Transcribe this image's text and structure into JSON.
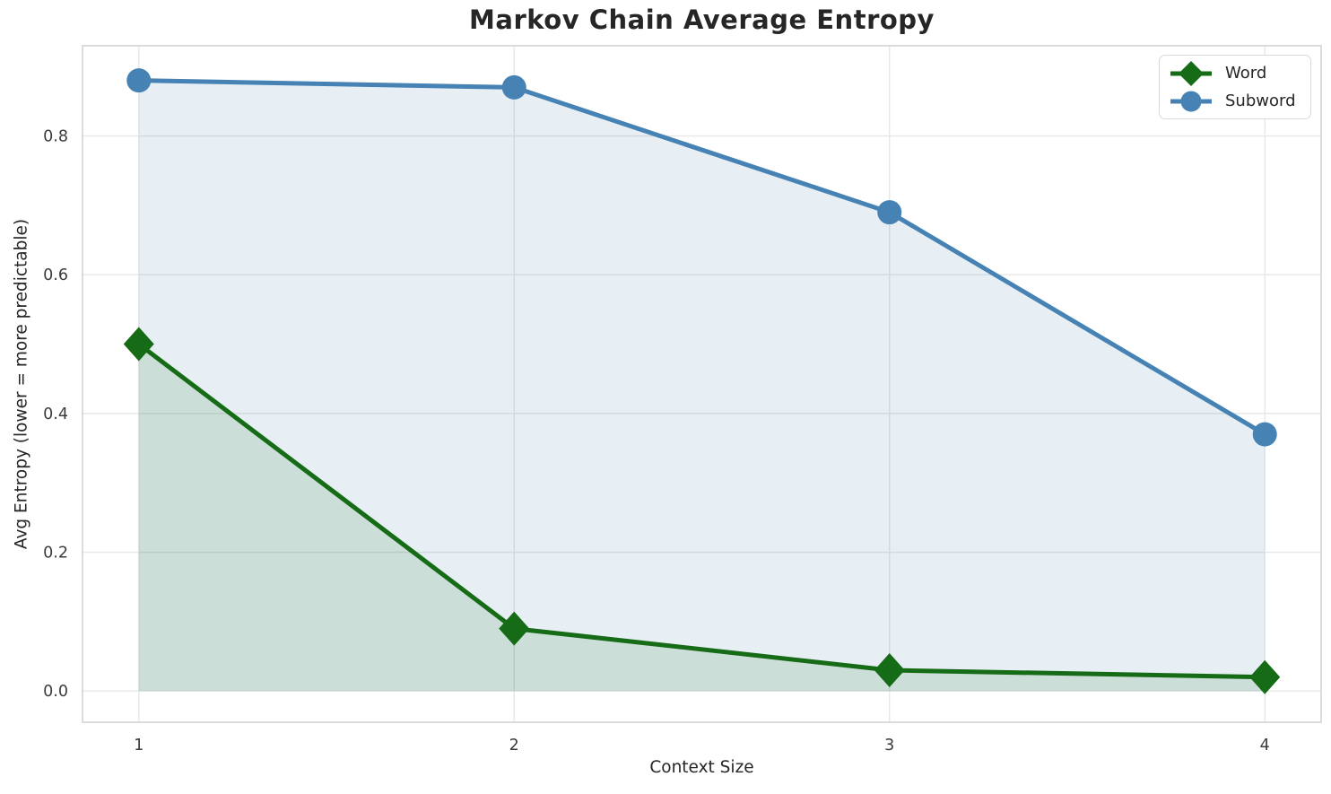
{
  "chart_data": {
    "type": "line",
    "title": "Markov Chain Average Entropy",
    "xlabel": "Context Size",
    "ylabel": "Avg Entropy (lower = more predictable)",
    "x": [
      1,
      2,
      3,
      4
    ],
    "series": [
      {
        "name": "Word",
        "values": [
          0.5,
          0.09,
          0.03,
          0.02
        ],
        "color": "#166b16",
        "marker": "diamond",
        "fill": true,
        "fill_opacity": 0.13
      },
      {
        "name": "Subword",
        "values": [
          0.88,
          0.87,
          0.69,
          0.37
        ],
        "color": "#4682b4",
        "marker": "circle",
        "fill": true,
        "fill_opacity": 0.13
      }
    ],
    "xlim": [
      0.85,
      4.15
    ],
    "ylim": [
      -0.045,
      0.93
    ],
    "xticks": [
      1,
      2,
      3,
      4
    ],
    "xtick_labels": [
      "1",
      "2",
      "3",
      "4"
    ],
    "yticks": [
      0.0,
      0.2,
      0.4,
      0.6,
      0.8
    ],
    "ytick_labels": [
      "0.0",
      "0.2",
      "0.4",
      "0.6",
      "0.8"
    ],
    "grid": true,
    "legend_position": "upper right",
    "colors": {
      "grid": "#e7e7e7",
      "spine": "#cccccc",
      "text": "#262626",
      "tick_text": "#3b3b3b"
    }
  }
}
